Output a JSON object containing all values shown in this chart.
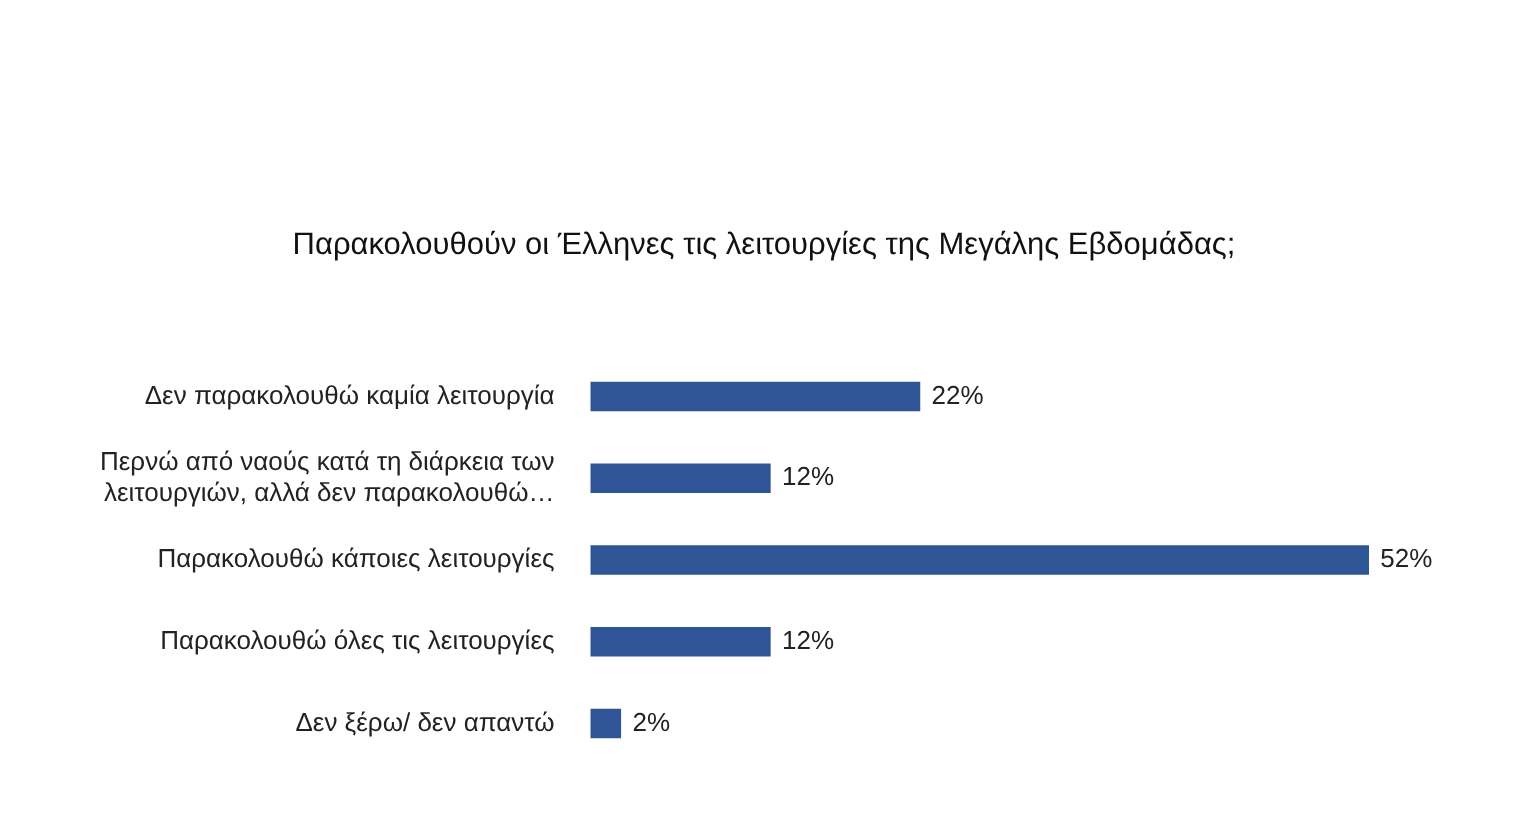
{
  "chart_data": {
    "type": "bar",
    "orientation": "horizontal",
    "title": "Παρακολουθούν οι Έλληνες τις λειτουργίες της Μεγάλης Εβδομάδας;",
    "categories": [
      "Δεν παρακολουθώ καμία λειτουργία",
      "Περνώ από ναούς κατά τη διάρκεια των λειτουργιών, αλλά δεν παρακολουθώ…",
      "Παρακολουθώ κάποιες λειτουργίες",
      "Παρακολουθώ όλες τις λειτουργίες",
      "Δεν ξέρω/ δεν απαντώ"
    ],
    "values": [
      22,
      12,
      52,
      12,
      2
    ],
    "value_labels": [
      "22%",
      "12%",
      "52%",
      "12%",
      "2%"
    ],
    "color": "#2f5597",
    "tick_labels": "y"
  }
}
